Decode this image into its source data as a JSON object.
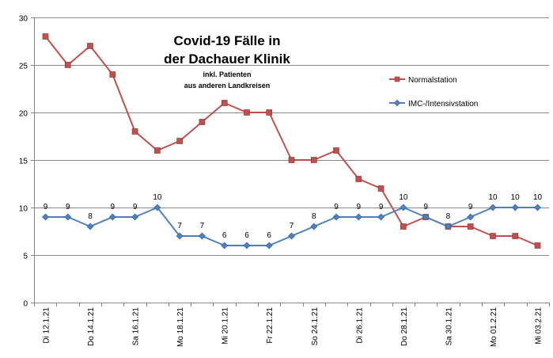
{
  "chart_data": {
    "type": "line",
    "title_line1": "Covid-19 Fälle in",
    "title_line2": "der Dachauer Klinik",
    "subtitle_line1": "inkl. Patienten",
    "subtitle_line2": "aus anderen Landkreisen",
    "ylim": [
      0,
      30
    ],
    "yticks": [
      "0",
      "5",
      "10",
      "15",
      "20",
      "25",
      "30"
    ],
    "categories": [
      "Di 12.1.21",
      "",
      "Do 14.1.21",
      "",
      "Sa 16.1.21",
      "",
      "Mo 18.1.21",
      "",
      "Mi 20.1.21",
      "",
      "Fr 22.1.21",
      "",
      "So 24.1.21",
      "",
      "Di 26.1.21",
      "",
      "Do 28.1.21",
      "",
      "Sa 30.1.21",
      "",
      "Mo 01.2.21",
      "",
      "Mi 03.2.21"
    ],
    "series": [
      {
        "name": "Normalstation",
        "color": "#C0504D",
        "marker": "square",
        "values": [
          28,
          25,
          27,
          24,
          18,
          16,
          17,
          19,
          21,
          20,
          20,
          15,
          15,
          16,
          13,
          12,
          8,
          9,
          8,
          8,
          7,
          7,
          6
        ]
      },
      {
        "name": "IMC-/Intensivstation",
        "color": "#4F81BD",
        "marker": "diamond",
        "values": [
          9,
          9,
          8,
          9,
          9,
          10,
          7,
          7,
          6,
          6,
          6,
          7,
          8,
          9,
          9,
          9,
          10,
          9,
          8,
          9,
          10,
          10,
          10
        ]
      }
    ],
    "data_labels": [
      "9",
      "9",
      "8",
      "9",
      "9",
      "10",
      "7",
      "7",
      "6",
      "6",
      "6",
      "7",
      "8",
      "9",
      "9",
      "9",
      "10",
      "9",
      "8",
      "9",
      "10",
      "10",
      "10"
    ]
  }
}
